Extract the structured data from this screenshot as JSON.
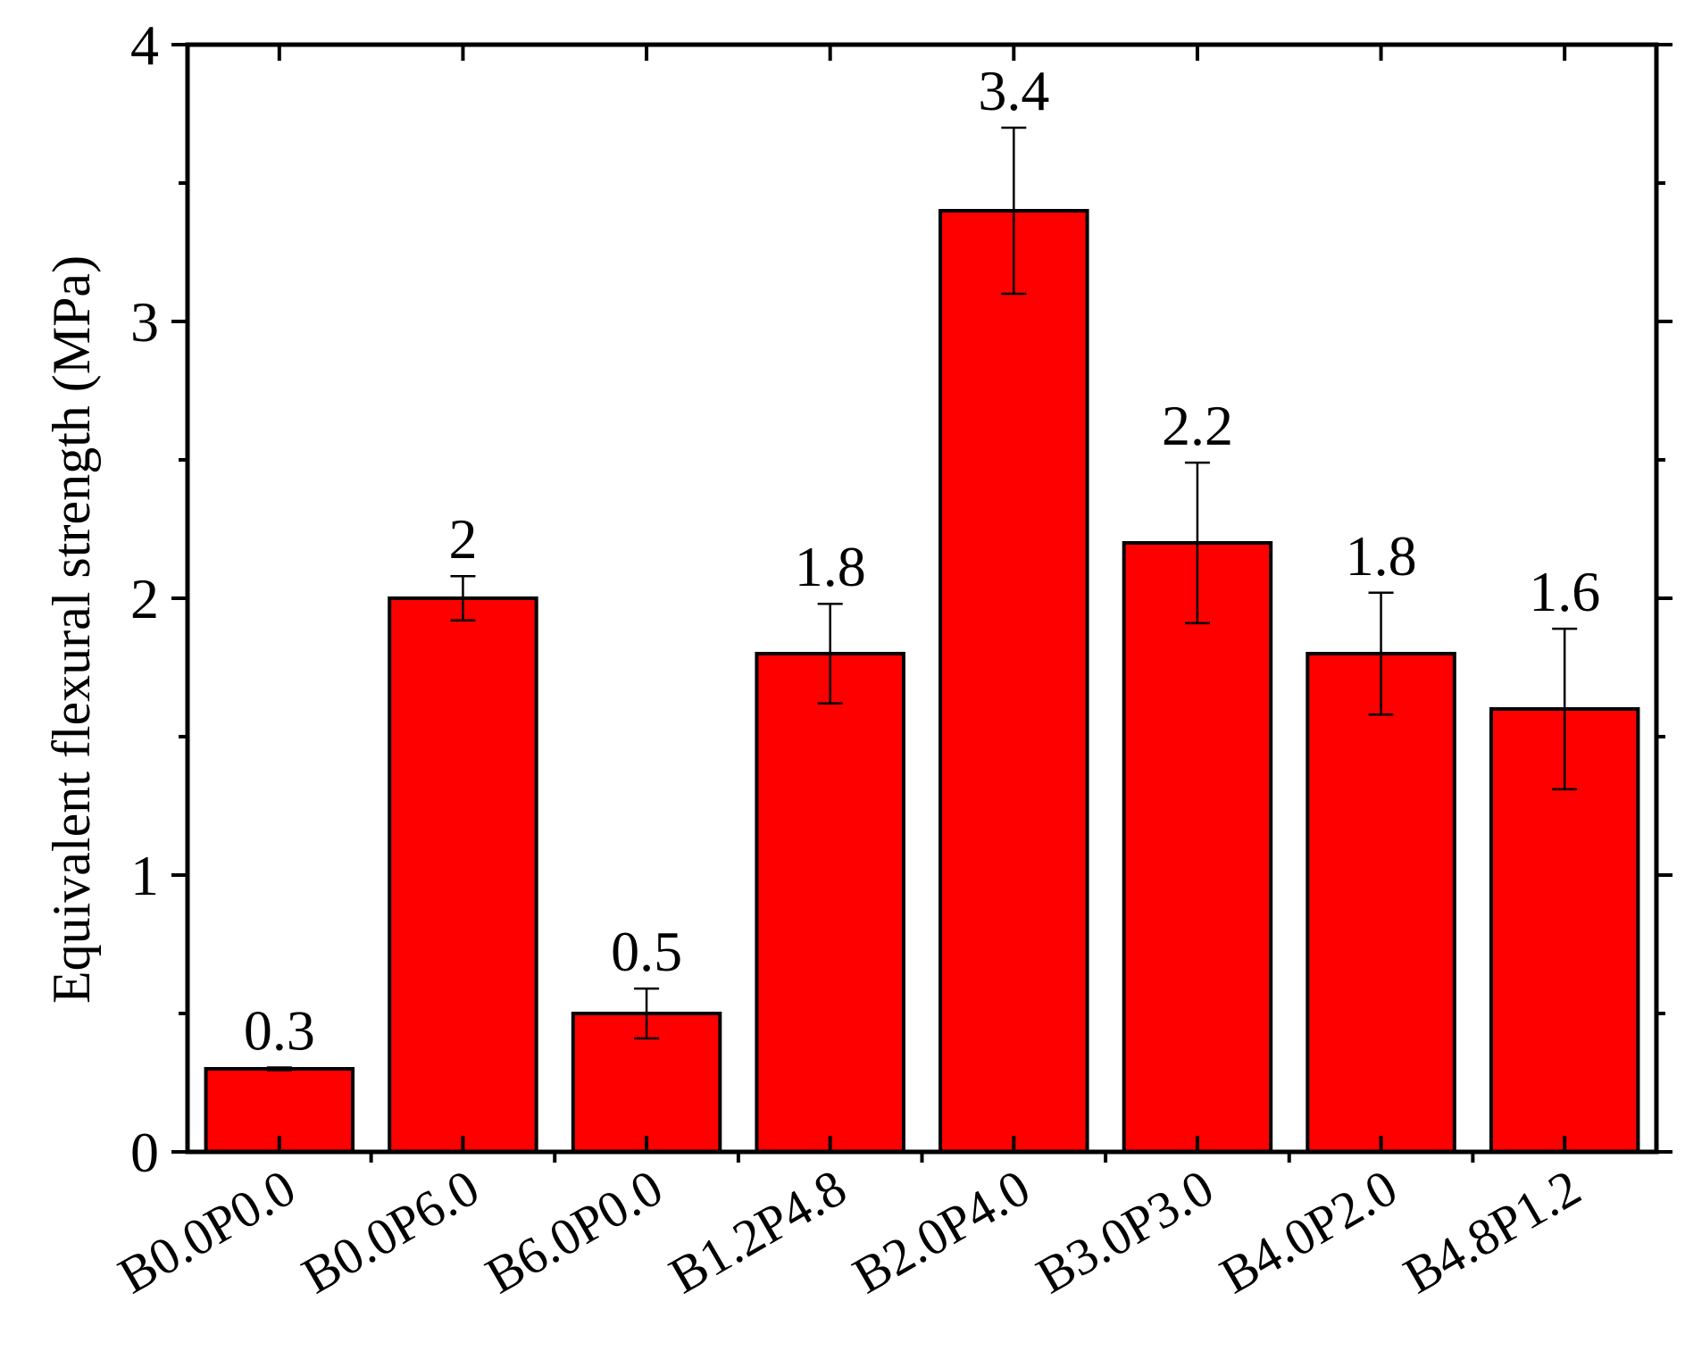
{
  "chart_data": {
    "type": "bar",
    "title": "",
    "xlabel": "",
    "ylabel": "Equivalent flexural strength (MPa)",
    "ylim": [
      0,
      4
    ],
    "yticks": [
      0,
      1,
      2,
      3,
      4
    ],
    "yticks_minor": [
      0.5,
      1.5,
      2.5,
      3.5
    ],
    "grid": false,
    "legend": "none",
    "bar_color": "#ff0000",
    "categories": [
      "B0.0P0.0",
      "B0.0P6.0",
      "B6.0P0.0",
      "B1.2P4.8",
      "B2.0P4.0",
      "B3.0P3.0",
      "B4.0P2.0",
      "B4.8P1.2"
    ],
    "values": [
      0.3,
      2.0,
      0.5,
      1.8,
      3.4,
      2.2,
      1.8,
      1.6
    ],
    "data_labels": [
      "0.3",
      "2",
      "0.5",
      "1.8",
      "3.4",
      "2.2",
      "1.8",
      "1.6"
    ],
    "error": [
      0.005,
      0.08,
      0.09,
      0.18,
      0.3,
      0.29,
      0.22,
      0.29
    ]
  }
}
